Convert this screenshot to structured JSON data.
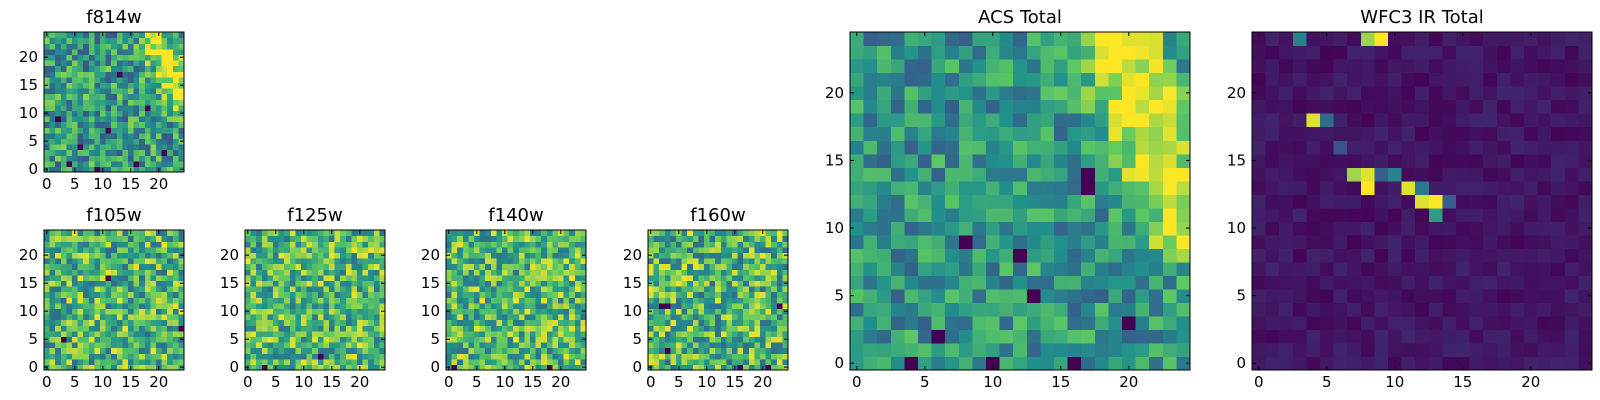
{
  "colormap": {
    "name": "viridis",
    "stops": [
      "#440154",
      "#3b528b",
      "#21918c",
      "#5ec962",
      "#fde725"
    ]
  },
  "chart_data": [
    {
      "type": "heatmap",
      "id": "f814w",
      "title": "f814w",
      "grid": [
        25,
        25
      ],
      "xlim": [
        -0.5,
        24.5
      ],
      "ylim": [
        -0.5,
        24.5
      ],
      "xticks": [
        0,
        5,
        10,
        15,
        20
      ],
      "yticks": [
        0,
        5,
        10,
        15,
        20
      ],
      "background_level": 0.55,
      "noise": 0.28,
      "seed": 814,
      "features": [
        {
          "kind": "diagonal-band",
          "x0": 19,
          "y0": 24,
          "x1": 24,
          "y1": 13,
          "width": 1.8,
          "amp": 0.45
        }
      ],
      "dark_cells": [
        [
          4,
          1
        ],
        [
          9,
          0
        ],
        [
          16,
          1
        ],
        [
          11,
          7
        ],
        [
          18,
          11
        ],
        [
          2,
          9
        ],
        [
          13,
          17
        ],
        [
          6,
          4
        ],
        [
          21,
          3
        ]
      ]
    },
    {
      "type": "heatmap",
      "id": "f105w",
      "title": "f105w",
      "grid": [
        25,
        25
      ],
      "xlim": [
        -0.5,
        24.5
      ],
      "ylim": [
        -0.5,
        24.5
      ],
      "xticks": [
        0,
        5,
        10,
        15,
        20
      ],
      "yticks": [
        0,
        5,
        10,
        15,
        20
      ],
      "background_level": 0.66,
      "noise": 0.32,
      "seed": 105,
      "features": [],
      "dark_cells": [
        [
          24,
          7
        ],
        [
          11,
          16
        ],
        [
          3,
          5
        ]
      ]
    },
    {
      "type": "heatmap",
      "id": "f125w",
      "title": "f125w",
      "grid": [
        25,
        25
      ],
      "xlim": [
        -0.5,
        24.5
      ],
      "ylim": [
        -0.5,
        24.5
      ],
      "xticks": [
        0,
        5,
        10,
        15,
        20
      ],
      "yticks": [
        0,
        5,
        10,
        15,
        20
      ],
      "background_level": 0.68,
      "noise": 0.3,
      "seed": 125,
      "features": [],
      "dark_cells": [
        [
          3,
          0
        ],
        [
          13,
          2
        ]
      ]
    },
    {
      "type": "heatmap",
      "id": "f140w",
      "title": "f140w",
      "grid": [
        25,
        25
      ],
      "xlim": [
        -0.5,
        24.5
      ],
      "ylim": [
        -0.5,
        24.5
      ],
      "xticks": [
        0,
        5,
        10,
        15,
        20
      ],
      "yticks": [
        0,
        5,
        10,
        15,
        20
      ],
      "background_level": 0.68,
      "noise": 0.3,
      "seed": 140,
      "features": [],
      "dark_cells": [
        [
          1,
          0
        ],
        [
          18,
          0
        ]
      ]
    },
    {
      "type": "heatmap",
      "id": "f160w",
      "title": "f160w",
      "grid": [
        25,
        25
      ],
      "xlim": [
        -0.5,
        24.5
      ],
      "ylim": [
        -0.5,
        24.5
      ],
      "xticks": [
        0,
        5,
        10,
        15,
        20
      ],
      "yticks": [
        0,
        5,
        10,
        15,
        20
      ],
      "background_level": 0.66,
      "noise": 0.32,
      "seed": 160,
      "features": [],
      "dark_cells": [
        [
          2,
          11
        ],
        [
          3,
          11
        ],
        [
          3,
          3
        ],
        [
          16,
          0
        ],
        [
          21,
          0
        ],
        [
          23,
          11
        ]
      ]
    },
    {
      "type": "heatmap",
      "id": "acs-total",
      "title": "ACS Total",
      "grid": [
        25,
        25
      ],
      "xlim": [
        -0.5,
        24.5
      ],
      "ylim": [
        -0.5,
        24.5
      ],
      "xticks": [
        0,
        5,
        10,
        15,
        20
      ],
      "yticks": [
        0,
        5,
        10,
        15,
        20
      ],
      "background_level": 0.52,
      "noise": 0.22,
      "seed": 777,
      "features": [
        {
          "kind": "diagonal-band",
          "x0": 19,
          "y0": 24,
          "x1": 24,
          "y1": 11,
          "width": 2.2,
          "amp": 0.48
        }
      ],
      "dark_cells": [
        [
          4,
          0
        ],
        [
          6,
          2
        ],
        [
          10,
          0
        ],
        [
          16,
          0
        ],
        [
          13,
          5
        ],
        [
          8,
          9
        ],
        [
          12,
          8
        ],
        [
          17,
          14
        ],
        [
          17,
          13
        ],
        [
          20,
          3
        ]
      ]
    },
    {
      "type": "heatmap",
      "id": "wfc3-ir-total",
      "title": "WFC3 IR Total",
      "grid": [
        25,
        25
      ],
      "xlim": [
        -0.5,
        24.5
      ],
      "ylim": [
        -0.5,
        24.5
      ],
      "xticks": [
        0,
        5,
        10,
        15,
        20
      ],
      "yticks": [
        0,
        5,
        10,
        15,
        20
      ],
      "background_level": 0.06,
      "noise": 0.05,
      "seed": 999,
      "features": [],
      "bright_cells": [
        [
          4,
          18,
          0.95
        ],
        [
          5,
          18,
          0.35
        ],
        [
          7,
          14,
          0.85
        ],
        [
          8,
          14,
          0.95
        ],
        [
          8,
          13,
          1.0
        ],
        [
          9,
          14,
          0.3
        ],
        [
          10,
          14,
          0.45
        ],
        [
          11,
          13,
          0.95
        ],
        [
          12,
          13,
          0.4
        ],
        [
          12,
          12,
          0.95
        ],
        [
          13,
          12,
          1.0
        ],
        [
          13,
          11,
          0.55
        ],
        [
          14,
          12,
          0.3
        ],
        [
          3,
          24,
          0.45
        ],
        [
          8,
          24,
          0.85
        ],
        [
          9,
          24,
          1.0
        ],
        [
          6,
          16,
          0.25
        ]
      ],
      "dark_cells": []
    }
  ]
}
